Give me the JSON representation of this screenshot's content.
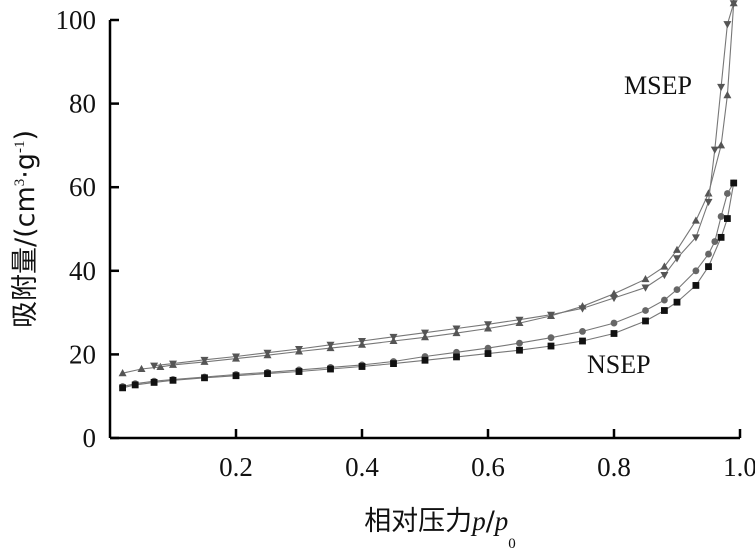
{
  "chart_data": {
    "type": "line",
    "title": "",
    "xlabel": {
      "prefix": "相对压力",
      "var": "p",
      "slash": "/",
      "var2": "p",
      "sub": "0"
    },
    "ylabel": {
      "prefix": "吸附量/(cm",
      "sup1": "3",
      "mid": "·g",
      "sup2": "-1",
      "suffix": ")"
    },
    "xlim": [
      0.0,
      1.0
    ],
    "ylim": [
      0,
      100
    ],
    "x_ticks": [
      "0.2",
      "0.4",
      "0.6",
      "0.8",
      "1.0"
    ],
    "x_tick_values": [
      0.2,
      0.4,
      0.6,
      0.8,
      1.0
    ],
    "y_ticks": [
      "0",
      "20",
      "40",
      "60",
      "80",
      "100"
    ],
    "y_tick_values": [
      0,
      20,
      40,
      60,
      80,
      100
    ],
    "grid": false,
    "annotations": {
      "msep": "MSEP",
      "nsep": "NSEP"
    },
    "series": [
      {
        "marker": "triangle-up",
        "color": "#555555",
        "x": [
          0.02,
          0.05,
          0.08,
          0.1,
          0.15,
          0.2,
          0.25,
          0.3,
          0.35,
          0.4,
          0.45,
          0.5,
          0.55,
          0.6,
          0.65,
          0.7,
          0.75,
          0.8,
          0.85,
          0.88,
          0.9,
          0.93,
          0.95,
          0.97,
          0.98,
          0.99
        ],
        "y": [
          15.5,
          16.5,
          17.0,
          17.5,
          18.2,
          19.0,
          19.8,
          20.7,
          21.5,
          22.3,
          23.2,
          24.1,
          25.1,
          26.2,
          27.5,
          29.2,
          31.5,
          34.5,
          38.0,
          41.0,
          45.0,
          52.0,
          58.5,
          70.0,
          82.0,
          104.0
        ]
      },
      {
        "marker": "triangle-down",
        "color": "#555555",
        "x": [
          0.99,
          0.98,
          0.97,
          0.96,
          0.95,
          0.93,
          0.9,
          0.88,
          0.85,
          0.8,
          0.75,
          0.7,
          0.65,
          0.6,
          0.55,
          0.5,
          0.45,
          0.4,
          0.35,
          0.3,
          0.25,
          0.2,
          0.15,
          0.1,
          0.07
        ],
        "y": [
          104.0,
          99.0,
          84.0,
          69.0,
          56.5,
          48.0,
          43.0,
          39.0,
          36.0,
          33.5,
          31.0,
          29.5,
          28.3,
          27.2,
          26.2,
          25.2,
          24.2,
          23.2,
          22.3,
          21.3,
          20.4,
          19.5,
          18.7,
          17.8,
          17.3
        ]
      },
      {
        "marker": "circle",
        "color": "#666666",
        "x": [
          0.02,
          0.04,
          0.07,
          0.1,
          0.15,
          0.2,
          0.25,
          0.3,
          0.35,
          0.4,
          0.45,
          0.5,
          0.55,
          0.6,
          0.65,
          0.7,
          0.75,
          0.8,
          0.85,
          0.88,
          0.9,
          0.93,
          0.95,
          0.96,
          0.97,
          0.98,
          0.99
        ],
        "y": [
          12.3,
          13.0,
          13.6,
          14.0,
          14.6,
          15.2,
          15.7,
          16.3,
          16.9,
          17.5,
          18.3,
          19.5,
          20.5,
          21.5,
          22.7,
          24.0,
          25.5,
          27.5,
          30.5,
          33.0,
          35.5,
          40.0,
          44.0,
          47.0,
          53.0,
          58.5,
          61.0
        ]
      },
      {
        "marker": "square",
        "color": "#111111",
        "x": [
          0.02,
          0.04,
          0.07,
          0.1,
          0.15,
          0.2,
          0.25,
          0.3,
          0.35,
          0.4,
          0.45,
          0.5,
          0.55,
          0.6,
          0.65,
          0.7,
          0.75,
          0.8,
          0.85,
          0.88,
          0.9,
          0.93,
          0.95,
          0.97,
          0.98,
          0.99
        ],
        "y": [
          12.0,
          12.7,
          13.3,
          13.8,
          14.4,
          14.9,
          15.4,
          15.9,
          16.5,
          17.1,
          17.8,
          18.6,
          19.4,
          20.2,
          21.0,
          22.0,
          23.2,
          25.0,
          28.0,
          30.5,
          32.5,
          36.5,
          41.0,
          48.0,
          52.5,
          61.0
        ]
      }
    ]
  }
}
